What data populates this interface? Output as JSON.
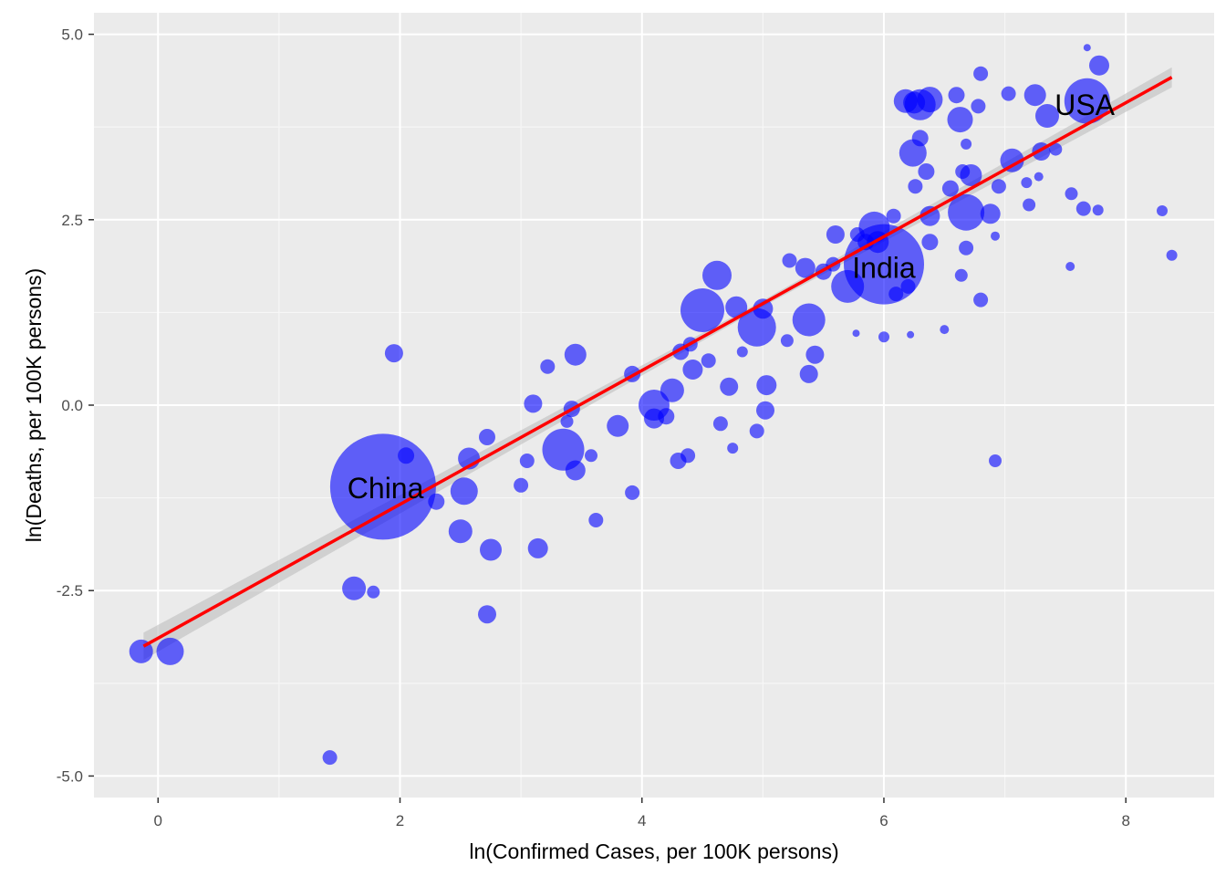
{
  "chart_data": {
    "type": "scatter",
    "xlabel": "ln(Confirmed Cases, per 100K persons)",
    "ylabel": "ln(Deaths, per 100K persons)",
    "xlim": [
      -0.53,
      8.73
    ],
    "ylim": [
      -5.29,
      5.29
    ],
    "x_ticks": [
      0,
      2,
      4,
      6,
      8
    ],
    "x_tick_labels": [
      "0",
      "2",
      "4",
      "6",
      "8"
    ],
    "y_ticks": [
      5.0,
      2.5,
      0.0,
      -2.5,
      -5.0
    ],
    "y_tick_labels": [
      "5.0",
      "2.5",
      "0.0",
      "-2.5",
      "-5.0"
    ],
    "grid": true,
    "colors": {
      "panel": "#EBEBEB",
      "grid_major": "#FFFFFF",
      "points": "#0000FF",
      "fit_line": "#FF0000",
      "confidence_band": "#BEBEBE"
    },
    "fit": {
      "x0": -0.12,
      "y0": -3.25,
      "x1": 8.38,
      "y1": 4.42
    },
    "point_labels": [
      {
        "text": "China",
        "x": 1.88,
        "y": -1.12
      },
      {
        "text": "India",
        "x": 6.0,
        "y": 1.85
      },
      {
        "text": "USA",
        "x": 7.66,
        "y": 4.05
      }
    ],
    "points": [
      {
        "x": 1.86,
        "y": -1.1,
        "size": 58
      },
      {
        "x": 6.0,
        "y": 1.9,
        "size": 44
      },
      {
        "x": 7.68,
        "y": 4.1,
        "size": 25
      },
      {
        "x": 5.38,
        "y": 1.15,
        "size": 18
      },
      {
        "x": 4.5,
        "y": 1.28,
        "size": 24
      },
      {
        "x": 4.95,
        "y": 1.05,
        "size": 21
      },
      {
        "x": 3.35,
        "y": -0.6,
        "size": 23
      },
      {
        "x": 4.1,
        "y": 0.0,
        "size": 17
      },
      {
        "x": 5.92,
        "y": 2.4,
        "size": 17
      },
      {
        "x": 6.68,
        "y": 2.6,
        "size": 20
      },
      {
        "x": 5.7,
        "y": 1.6,
        "size": 18
      },
      {
        "x": 6.3,
        "y": 4.05,
        "size": 17
      },
      {
        "x": 6.38,
        "y": 4.12,
        "size": 14
      },
      {
        "x": 6.24,
        "y": 3.4,
        "size": 15
      },
      {
        "x": 6.63,
        "y": 3.85,
        "size": 14
      },
      {
        "x": 7.35,
        "y": 3.9,
        "size": 13
      },
      {
        "x": 7.06,
        "y": 3.3,
        "size": 13
      },
      {
        "x": 7.25,
        "y": 4.18,
        "size": 12
      },
      {
        "x": 7.78,
        "y": 4.58,
        "size": 11
      },
      {
        "x": 4.62,
        "y": 1.75,
        "size": 16
      },
      {
        "x": 4.78,
        "y": 1.32,
        "size": 12
      },
      {
        "x": 2.5,
        "y": -1.7,
        "size": 13
      },
      {
        "x": 2.75,
        "y": -1.95,
        "size": 12
      },
      {
        "x": 3.14,
        "y": -1.93,
        "size": 11
      },
      {
        "x": 1.62,
        "y": -2.47,
        "size": 13
      },
      {
        "x": 0.1,
        "y": -3.32,
        "size": 15
      },
      {
        "x": -0.14,
        "y": -3.32,
        "size": 13
      },
      {
        "x": 2.53,
        "y": -1.16,
        "size": 15
      },
      {
        "x": 2.57,
        "y": -0.72,
        "size": 12
      },
      {
        "x": 3.45,
        "y": 0.68,
        "size": 12
      },
      {
        "x": 1.95,
        "y": 0.7,
        "size": 10
      },
      {
        "x": 2.72,
        "y": -2.82,
        "size": 10
      },
      {
        "x": 1.42,
        "y": -4.75,
        "size": 8
      },
      {
        "x": 1.78,
        "y": -2.52,
        "size": 7
      },
      {
        "x": 3.8,
        "y": -0.28,
        "size": 12
      },
      {
        "x": 4.25,
        "y": 0.2,
        "size": 13
      },
      {
        "x": 4.32,
        "y": 0.72,
        "size": 9
      },
      {
        "x": 4.1,
        "y": -0.18,
        "size": 11
      },
      {
        "x": 3.45,
        "y": -0.88,
        "size": 11
      },
      {
        "x": 3.62,
        "y": -1.55,
        "size": 8
      },
      {
        "x": 3.0,
        "y": -1.08,
        "size": 8
      },
      {
        "x": 3.1,
        "y": 0.02,
        "size": 10
      },
      {
        "x": 3.22,
        "y": 0.52,
        "size": 8
      },
      {
        "x": 3.42,
        "y": -0.05,
        "size": 9
      },
      {
        "x": 2.72,
        "y": -0.43,
        "size": 9
      },
      {
        "x": 4.42,
        "y": 0.48,
        "size": 11
      },
      {
        "x": 4.72,
        "y": 0.25,
        "size": 10
      },
      {
        "x": 5.03,
        "y": 0.27,
        "size": 11
      },
      {
        "x": 5.02,
        "y": -0.07,
        "size": 10
      },
      {
        "x": 4.65,
        "y": -0.25,
        "size": 8
      },
      {
        "x": 4.95,
        "y": -0.35,
        "size": 8
      },
      {
        "x": 4.3,
        "y": -0.75,
        "size": 9
      },
      {
        "x": 4.38,
        "y": -0.68,
        "size": 8
      },
      {
        "x": 3.92,
        "y": -1.18,
        "size": 8
      },
      {
        "x": 3.92,
        "y": 0.42,
        "size": 9
      },
      {
        "x": 5.38,
        "y": 0.42,
        "size": 10
      },
      {
        "x": 5.43,
        "y": 0.68,
        "size": 10
      },
      {
        "x": 5.0,
        "y": 1.3,
        "size": 11
      },
      {
        "x": 5.22,
        "y": 1.95,
        "size": 8
      },
      {
        "x": 5.35,
        "y": 1.85,
        "size": 11
      },
      {
        "x": 5.58,
        "y": 1.9,
        "size": 8
      },
      {
        "x": 5.85,
        "y": 2.2,
        "size": 9
      },
      {
        "x": 6.08,
        "y": 2.55,
        "size": 8
      },
      {
        "x": 6.38,
        "y": 2.2,
        "size": 9
      },
      {
        "x": 6.3,
        "y": 3.6,
        "size": 9
      },
      {
        "x": 6.26,
        "y": 2.95,
        "size": 8
      },
      {
        "x": 6.18,
        "y": 4.1,
        "size": 13
      },
      {
        "x": 6.25,
        "y": 4.08,
        "size": 12
      },
      {
        "x": 6.35,
        "y": 3.15,
        "size": 9
      },
      {
        "x": 6.6,
        "y": 4.18,
        "size": 9
      },
      {
        "x": 6.68,
        "y": 3.52,
        "size": 6
      },
      {
        "x": 6.55,
        "y": 2.92,
        "size": 9
      },
      {
        "x": 6.72,
        "y": 3.1,
        "size": 12
      },
      {
        "x": 6.65,
        "y": 3.15,
        "size": 8
      },
      {
        "x": 6.8,
        "y": 4.47,
        "size": 8
      },
      {
        "x": 6.78,
        "y": 4.03,
        "size": 8
      },
      {
        "x": 6.88,
        "y": 2.58,
        "size": 11
      },
      {
        "x": 6.92,
        "y": 2.28,
        "size": 5
      },
      {
        "x": 6.68,
        "y": 2.12,
        "size": 8
      },
      {
        "x": 6.64,
        "y": 1.75,
        "size": 7
      },
      {
        "x": 6.8,
        "y": 1.42,
        "size": 8
      },
      {
        "x": 6.92,
        "y": -0.75,
        "size": 7
      },
      {
        "x": 6.5,
        "y": 1.02,
        "size": 5
      },
      {
        "x": 6.22,
        "y": 0.95,
        "size": 4
      },
      {
        "x": 6.0,
        "y": 0.92,
        "size": 6
      },
      {
        "x": 5.77,
        "y": 0.97,
        "size": 4
      },
      {
        "x": 6.95,
        "y": 2.95,
        "size": 8
      },
      {
        "x": 7.03,
        "y": 4.2,
        "size": 8
      },
      {
        "x": 7.18,
        "y": 3.0,
        "size": 6
      },
      {
        "x": 7.2,
        "y": 2.7,
        "size": 7
      },
      {
        "x": 7.28,
        "y": 3.08,
        "size": 5
      },
      {
        "x": 7.3,
        "y": 3.42,
        "size": 10
      },
      {
        "x": 7.42,
        "y": 3.45,
        "size": 7
      },
      {
        "x": 7.55,
        "y": 2.85,
        "size": 7
      },
      {
        "x": 7.65,
        "y": 2.65,
        "size": 8
      },
      {
        "x": 7.77,
        "y": 2.63,
        "size": 6
      },
      {
        "x": 7.54,
        "y": 1.87,
        "size": 5
      },
      {
        "x": 7.68,
        "y": 4.82,
        "size": 4
      },
      {
        "x": 8.3,
        "y": 2.62,
        "size": 6
      },
      {
        "x": 8.38,
        "y": 2.02,
        "size": 6
      },
      {
        "x": 4.83,
        "y": 0.72,
        "size": 6
      },
      {
        "x": 4.75,
        "y": -0.58,
        "size": 6
      },
      {
        "x": 5.2,
        "y": 0.87,
        "size": 7
      },
      {
        "x": 3.38,
        "y": -0.22,
        "size": 7
      },
      {
        "x": 2.05,
        "y": -0.68,
        "size": 9
      },
      {
        "x": 2.3,
        "y": -1.3,
        "size": 9
      },
      {
        "x": 4.4,
        "y": 0.82,
        "size": 8
      },
      {
        "x": 4.55,
        "y": 0.6,
        "size": 8
      },
      {
        "x": 3.05,
        "y": -0.75,
        "size": 8
      },
      {
        "x": 3.58,
        "y": -0.68,
        "size": 7
      },
      {
        "x": 5.6,
        "y": 2.3,
        "size": 10
      },
      {
        "x": 5.78,
        "y": 2.3,
        "size": 8
      },
      {
        "x": 5.95,
        "y": 2.2,
        "size": 12
      },
      {
        "x": 6.1,
        "y": 1.5,
        "size": 8
      },
      {
        "x": 6.2,
        "y": 1.6,
        "size": 8
      },
      {
        "x": 5.5,
        "y": 1.8,
        "size": 9
      },
      {
        "x": 6.38,
        "y": 2.55,
        "size": 11
      },
      {
        "x": 4.2,
        "y": -0.15,
        "size": 9
      }
    ]
  }
}
